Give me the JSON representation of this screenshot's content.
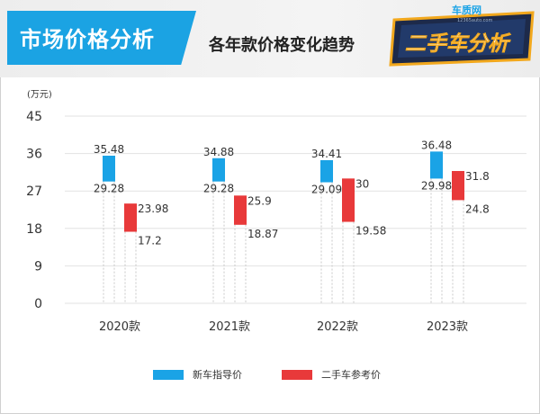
{
  "header": {
    "title": "市场价格分析",
    "subtitle": "各年款价格变化趋势",
    "logo_top": "车质网",
    "logo_url": "12365auto.com",
    "logo_main": "二手车分析"
  },
  "colors": {
    "accent": "#1ba3e3",
    "new_car": "#1aa3e6",
    "used_car": "#e8393a"
  },
  "chart_data": {
    "type": "bar",
    "unit": "(万元)",
    "categories": [
      "2020款",
      "2021款",
      "2022款",
      "2023款"
    ],
    "ylim": [
      0,
      45
    ],
    "yticks": [
      "0",
      "9",
      "18",
      "27",
      "36",
      "45"
    ],
    "grid": true,
    "legend_position": "bottom-center",
    "series": [
      {
        "name": "新车指导价",
        "color": "#1aa3e6",
        "low": [
          29.28,
          29.28,
          29.09,
          29.98
        ],
        "high": [
          35.48,
          34.88,
          34.41,
          36.48
        ],
        "low_labels": [
          "29.28",
          "29.28",
          "29.09",
          "29.98"
        ],
        "high_labels": [
          "35.48",
          "34.88",
          "34.41",
          "36.48"
        ]
      },
      {
        "name": "二手车参考价",
        "color": "#e8393a",
        "low": [
          17.2,
          18.87,
          19.58,
          24.8
        ],
        "high": [
          23.98,
          25.9,
          30,
          31.8
        ],
        "low_labels": [
          "17.2",
          "18.87",
          "19.58",
          "24.8"
        ],
        "high_labels": [
          "23.98",
          "25.9",
          "30",
          "31.8"
        ]
      }
    ]
  }
}
